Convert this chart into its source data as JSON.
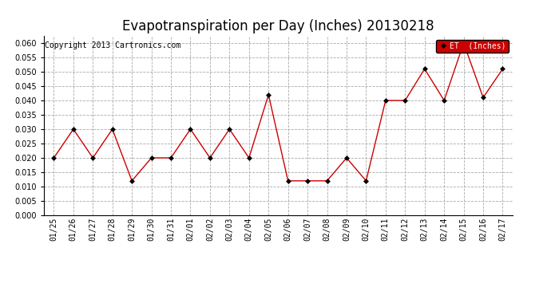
{
  "title": "Evapotranspiration per Day (Inches) 20130218",
  "copyright": "Copyright 2013 Cartronics.com",
  "legend_label": "ET  (Inches)",
  "dates": [
    "01/25",
    "01/26",
    "01/27",
    "01/28",
    "01/29",
    "01/30",
    "01/31",
    "02/01",
    "02/02",
    "02/03",
    "02/04",
    "02/05",
    "02/06",
    "02/07",
    "02/08",
    "02/09",
    "02/10",
    "02/11",
    "02/12",
    "02/13",
    "02/14",
    "02/15",
    "02/16",
    "02/17"
  ],
  "values": [
    0.02,
    0.03,
    0.02,
    0.03,
    0.012,
    0.02,
    0.02,
    0.03,
    0.02,
    0.03,
    0.02,
    0.042,
    0.012,
    0.012,
    0.012,
    0.02,
    0.012,
    0.04,
    0.04,
    0.051,
    0.04,
    0.06,
    0.041,
    0.051
  ],
  "line_color": "#cc0000",
  "marker": "D",
  "marker_size": 3,
  "ylim": [
    0.0,
    0.0625
  ],
  "yticks": [
    0.0,
    0.005,
    0.01,
    0.015,
    0.02,
    0.025,
    0.03,
    0.035,
    0.04,
    0.045,
    0.05,
    0.055,
    0.06
  ],
  "grid_color": "#aaaaaa",
  "background_color": "#ffffff",
  "fig_background": "#ffffff",
  "title_fontsize": 12,
  "copyright_fontsize": 7,
  "legend_bg": "#cc0000",
  "legend_text_color": "#ffffff"
}
